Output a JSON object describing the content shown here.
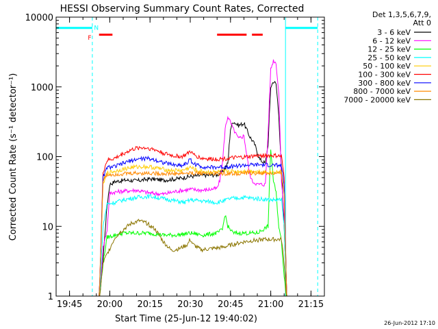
{
  "chart_data": {
    "type": "line",
    "title": "HESSI Observing Summary Count Rates, Corrected",
    "xlabel": "Start Time (25-Jun-12 19:40:02)",
    "ylabel": "Corrected Count Rate (s⁻¹ detector⁻¹)",
    "y_scale": "log",
    "ylim": [
      1,
      10000
    ],
    "xlim_minutes_after_19_40": [
      0,
      100
    ],
    "x_ticks": [
      {
        "label": "19:45",
        "t": 5
      },
      {
        "label": "20:00",
        "t": 20
      },
      {
        "label": "20:15",
        "t": 35
      },
      {
        "label": "20:30",
        "t": 50
      },
      {
        "label": "20:45",
        "t": 65
      },
      {
        "label": "21:00",
        "t": 80
      },
      {
        "label": "21:15",
        "t": 95
      }
    ],
    "y_ticks": [
      {
        "label": "1",
        "v": 1
      },
      {
        "label": "10",
        "v": 10
      },
      {
        "label": "100",
        "v": 100
      },
      {
        "label": "1000",
        "v": 1000
      },
      {
        "label": "10000",
        "v": 10000
      }
    ],
    "legend_header": [
      "Det 1,3,5,6,7,9,",
      "Att 0"
    ],
    "legend_placement": "right",
    "series": [
      {
        "name": "3 - 6 keV",
        "color": "#000000",
        "points": [
          [
            16,
            0.8
          ],
          [
            17.5,
            3.5
          ],
          [
            19,
            20
          ],
          [
            20,
            40
          ],
          [
            22,
            44
          ],
          [
            26,
            46
          ],
          [
            30,
            45
          ],
          [
            35,
            48
          ],
          [
            40,
            46
          ],
          [
            45,
            48
          ],
          [
            50,
            52
          ],
          [
            55,
            54
          ],
          [
            60,
            55
          ],
          [
            62,
            60
          ],
          [
            64,
            80
          ],
          [
            65,
            250
          ],
          [
            66,
            320
          ],
          [
            68,
            280
          ],
          [
            70,
            300
          ],
          [
            72,
            200
          ],
          [
            74,
            150
          ],
          [
            76,
            90
          ],
          [
            78,
            80
          ],
          [
            79,
            150
          ],
          [
            80,
            1000
          ],
          [
            81,
            1200
          ],
          [
            82,
            1100
          ],
          [
            83,
            400
          ],
          [
            84,
            60
          ],
          [
            85,
            10
          ],
          [
            86,
            0.8
          ]
        ]
      },
      {
        "name": "6 - 12 keV",
        "color": "#ff00ff",
        "points": [
          [
            16,
            0.8
          ],
          [
            17.5,
            5
          ],
          [
            19,
            9
          ],
          [
            20,
            30
          ],
          [
            22,
            31
          ],
          [
            25,
            32
          ],
          [
            30,
            33
          ],
          [
            35,
            30
          ],
          [
            40,
            29
          ],
          [
            45,
            32
          ],
          [
            50,
            34
          ],
          [
            55,
            33
          ],
          [
            60,
            35
          ],
          [
            61,
            45
          ],
          [
            62,
            80
          ],
          [
            63,
            250
          ],
          [
            64,
            380
          ],
          [
            66,
            250
          ],
          [
            68,
            180
          ],
          [
            70,
            200
          ],
          [
            72,
            60
          ],
          [
            73,
            45
          ],
          [
            75,
            40
          ],
          [
            78,
            40
          ],
          [
            79,
            220
          ],
          [
            80,
            1800
          ],
          [
            81,
            2400
          ],
          [
            82,
            2200
          ],
          [
            83,
            800
          ],
          [
            84,
            45
          ],
          [
            85,
            15
          ],
          [
            86,
            0.8
          ]
        ]
      },
      {
        "name": "12 - 25 keV",
        "color": "#00ff00",
        "points": [
          [
            16,
            0.8
          ],
          [
            17.5,
            3
          ],
          [
            19,
            7
          ],
          [
            22,
            7.5
          ],
          [
            25,
            8
          ],
          [
            30,
            8
          ],
          [
            35,
            8
          ],
          [
            40,
            7.5
          ],
          [
            45,
            7.5
          ],
          [
            50,
            8
          ],
          [
            55,
            7.5
          ],
          [
            60,
            8
          ],
          [
            62,
            9
          ],
          [
            63,
            15
          ],
          [
            64,
            10
          ],
          [
            66,
            8
          ],
          [
            70,
            8
          ],
          [
            75,
            8
          ],
          [
            79,
            10
          ],
          [
            80,
            130
          ],
          [
            81,
            45
          ],
          [
            82,
            30
          ],
          [
            83,
            10
          ],
          [
            84,
            6
          ],
          [
            85,
            2
          ],
          [
            86,
            0.8
          ]
        ]
      },
      {
        "name": "25 - 50 keV",
        "color": "#00ffff",
        "points": [
          [
            16,
            0.8
          ],
          [
            17.5,
            10
          ],
          [
            19,
            21
          ],
          [
            22,
            22
          ],
          [
            25,
            24
          ],
          [
            30,
            26
          ],
          [
            35,
            27
          ],
          [
            40,
            25
          ],
          [
            45,
            23
          ],
          [
            48,
            22
          ],
          [
            50,
            24
          ],
          [
            55,
            23
          ],
          [
            60,
            22
          ],
          [
            62,
            23
          ],
          [
            65,
            25
          ],
          [
            70,
            26
          ],
          [
            75,
            25
          ],
          [
            80,
            24
          ],
          [
            84,
            24
          ],
          [
            85,
            10
          ],
          [
            86,
            0.8
          ]
        ]
      },
      {
        "name": "50 - 100 keV",
        "color": "#ffcc00",
        "points": [
          [
            16,
            0.8
          ],
          [
            17.5,
            40
          ],
          [
            19,
            58
          ],
          [
            22,
            62
          ],
          [
            25,
            66
          ],
          [
            28,
            70
          ],
          [
            32,
            72
          ],
          [
            35,
            71
          ],
          [
            38,
            68
          ],
          [
            42,
            64
          ],
          [
            47,
            63
          ],
          [
            50,
            70
          ],
          [
            53,
            62
          ],
          [
            57,
            60
          ],
          [
            60,
            60
          ],
          [
            64,
            62
          ],
          [
            68,
            61
          ],
          [
            72,
            62
          ],
          [
            76,
            61
          ],
          [
            80,
            60
          ],
          [
            84,
            60
          ],
          [
            85,
            30
          ],
          [
            86,
            0.8
          ]
        ]
      },
      {
        "name": "100 - 300 keV",
        "color": "#ff0000",
        "points": [
          [
            16,
            0.8
          ],
          [
            17.5,
            60
          ],
          [
            19,
            88
          ],
          [
            22,
            95
          ],
          [
            25,
            110
          ],
          [
            28,
            125
          ],
          [
            31,
            135
          ],
          [
            34,
            133
          ],
          [
            37,
            125
          ],
          [
            40,
            112
          ],
          [
            44,
            102
          ],
          [
            47,
            100
          ],
          [
            49,
            110
          ],
          [
            50,
            120
          ],
          [
            51,
            108
          ],
          [
            54,
            95
          ],
          [
            58,
            92
          ],
          [
            62,
            93
          ],
          [
            66,
            96
          ],
          [
            70,
            98
          ],
          [
            74,
            102
          ],
          [
            78,
            104
          ],
          [
            82,
            103
          ],
          [
            84,
            100
          ],
          [
            85,
            50
          ],
          [
            86,
            0.8
          ]
        ]
      },
      {
        "name": "300 - 800 keV",
        "color": "#0000ff",
        "points": [
          [
            16,
            0.8
          ],
          [
            17.5,
            50
          ],
          [
            19,
            70
          ],
          [
            22,
            72
          ],
          [
            25,
            80
          ],
          [
            28,
            88
          ],
          [
            31,
            93
          ],
          [
            34,
            94
          ],
          [
            37,
            90
          ],
          [
            40,
            82
          ],
          [
            44,
            76
          ],
          [
            47,
            75
          ],
          [
            49,
            82
          ],
          [
            50,
            92
          ],
          [
            51,
            80
          ],
          [
            54,
            72
          ],
          [
            58,
            70
          ],
          [
            62,
            71
          ],
          [
            66,
            73
          ],
          [
            70,
            75
          ],
          [
            74,
            76
          ],
          [
            78,
            76
          ],
          [
            82,
            75
          ],
          [
            84,
            74
          ],
          [
            85,
            40
          ],
          [
            86,
            0.8
          ]
        ]
      },
      {
        "name": "800 - 7000 keV",
        "color": "#ff8800",
        "points": [
          [
            16,
            0.8
          ],
          [
            17.5,
            45
          ],
          [
            19,
            55
          ],
          [
            22,
            56
          ],
          [
            26,
            57
          ],
          [
            30,
            58
          ],
          [
            35,
            58
          ],
          [
            40,
            57
          ],
          [
            45,
            57
          ],
          [
            50,
            58
          ],
          [
            55,
            58
          ],
          [
            60,
            57
          ],
          [
            65,
            57
          ],
          [
            70,
            58
          ],
          [
            75,
            58
          ],
          [
            80,
            57
          ],
          [
            84,
            57
          ],
          [
            85,
            30
          ],
          [
            86,
            0.8
          ]
        ]
      },
      {
        "name": "7000 - 20000 keV",
        "color": "#8b7500",
        "points": [
          [
            16,
            0.8
          ],
          [
            17.5,
            3
          ],
          [
            19,
            4
          ],
          [
            22,
            7
          ],
          [
            25,
            9
          ],
          [
            28,
            11
          ],
          [
            31,
            12
          ],
          [
            34,
            11
          ],
          [
            37,
            9
          ],
          [
            40,
            6
          ],
          [
            43,
            4.5
          ],
          [
            46,
            4.8
          ],
          [
            49,
            5.5
          ],
          [
            50,
            6.5
          ],
          [
            51,
            5.5
          ],
          [
            54,
            4.6
          ],
          [
            58,
            4.8
          ],
          [
            62,
            5
          ],
          [
            66,
            5.5
          ],
          [
            70,
            6
          ],
          [
            74,
            6.3
          ],
          [
            78,
            6.5
          ],
          [
            82,
            6.5
          ],
          [
            84,
            6.5
          ],
          [
            85,
            3
          ],
          [
            86,
            0.8
          ]
        ]
      }
    ],
    "state_bars": [
      {
        "label": "",
        "color": "#00ffff",
        "level": 7000,
        "segments": [
          [
            0,
            13.5
          ],
          [
            85.5,
            97.5
          ]
        ]
      },
      {
        "label": "",
        "color": "#ff0000",
        "level": 5600,
        "segments": [
          [
            16,
            21
          ],
          [
            60,
            71
          ],
          [
            73,
            77
          ]
        ]
      }
    ],
    "state_bar_labels": [
      {
        "text": "N",
        "color": "#00ffff",
        "t": 15,
        "level": 7200
      },
      {
        "text": "F",
        "color": "#ff0000",
        "t": 12.5,
        "level": 5200
      }
    ],
    "vertical_lines": [
      {
        "t": 0,
        "style": "solid",
        "color": "#00ffff"
      },
      {
        "t": 13.5,
        "style": "dashed",
        "color": "#00ffff"
      },
      {
        "t": 85.5,
        "style": "solid",
        "color": "#00ffff"
      },
      {
        "t": 97.5,
        "style": "dashed",
        "color": "#00ffff"
      }
    ]
  },
  "footer": {
    "timestamp": "26-Jun-2012 17:10"
  }
}
